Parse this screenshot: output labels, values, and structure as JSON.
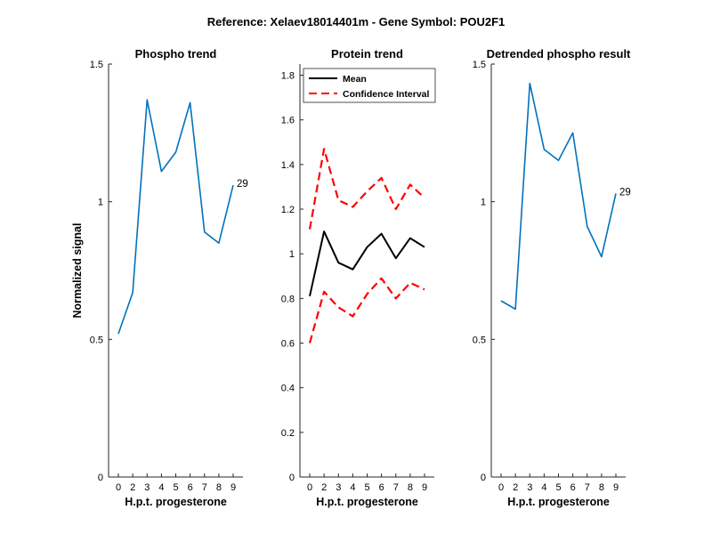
{
  "figure": {
    "title": "Reference:  Xelaev18014401m - Gene Symbol:  POU2F1"
  },
  "chart_data": [
    {
      "type": "line",
      "title": "Phospho trend",
      "xlabel": "H.p.t. progesterone",
      "ylabel": "Normalized signal",
      "x": [
        0,
        2,
        3,
        4,
        5,
        6,
        7,
        8,
        9
      ],
      "xtick_labels": [
        "0",
        "2",
        "3",
        "4",
        "5",
        "6",
        "7",
        "8",
        "9"
      ],
      "ylim": [
        0,
        1.5
      ],
      "yticks": [
        0,
        0.5,
        1,
        1.5
      ],
      "ytick_labels": [
        "0",
        "0.5",
        "1",
        "1.5"
      ],
      "series": [
        {
          "values": [
            0.52,
            0.67,
            1.37,
            1.11,
            1.18,
            1.36,
            0.89,
            0.85,
            1.06
          ],
          "color": "#0072BD",
          "style": "solid"
        }
      ],
      "annotation": {
        "text": "29",
        "x": 9,
        "y": 1.06
      },
      "grid": false
    },
    {
      "type": "line",
      "title": "Protein trend",
      "xlabel": "H.p.t. progesterone",
      "ylabel": "",
      "x": [
        0,
        2,
        3,
        4,
        5,
        6,
        7,
        8,
        9
      ],
      "xtick_labels": [
        "0",
        "2",
        "3",
        "4",
        "5",
        "6",
        "7",
        "8",
        "9"
      ],
      "ylim": [
        0,
        1.85
      ],
      "yticks": [
        0,
        0.2,
        0.4,
        0.6,
        0.8,
        1,
        1.2,
        1.4,
        1.6,
        1.8
      ],
      "ytick_labels": [
        "0",
        "0.2",
        "0.4",
        "0.6",
        "0.8",
        "1",
        "1.2",
        "1.4",
        "1.6",
        "1.8"
      ],
      "series": [
        {
          "name": "Mean",
          "values": [
            0.81,
            1.1,
            0.96,
            0.93,
            1.03,
            1.09,
            0.98,
            1.07,
            1.03
          ],
          "color": "#000000",
          "style": "solid"
        },
        {
          "name": "Confidence Interval",
          "values": [
            1.11,
            1.47,
            1.24,
            1.21,
            1.28,
            1.34,
            1.2,
            1.31,
            1.25
          ],
          "color": "#ff0000",
          "style": "dashed"
        },
        {
          "values": [
            0.6,
            0.83,
            0.76,
            0.72,
            0.82,
            0.89,
            0.8,
            0.87,
            0.84
          ],
          "color": "#ff0000",
          "style": "dashed"
        }
      ],
      "legend": {
        "placement": "top-left",
        "entries": [
          "Mean",
          "Confidence Interval"
        ]
      },
      "grid": false
    },
    {
      "type": "line",
      "title": "Detrended phospho result",
      "xlabel": "H.p.t. progesterone",
      "ylabel": "",
      "x": [
        0,
        2,
        3,
        4,
        5,
        6,
        7,
        8,
        9
      ],
      "xtick_labels": [
        "0",
        "2",
        "3",
        "4",
        "5",
        "6",
        "7",
        "8",
        "9"
      ],
      "ylim": [
        0,
        1.5
      ],
      "yticks": [
        0,
        0.5,
        1,
        1.5
      ],
      "ytick_labels": [
        "0",
        "0.5",
        "1",
        "1.5"
      ],
      "series": [
        {
          "values": [
            0.64,
            0.61,
            1.43,
            1.19,
            1.15,
            1.25,
            0.91,
            0.8,
            1.03
          ],
          "color": "#0072BD",
          "style": "solid"
        }
      ],
      "annotation": {
        "text": "29",
        "x": 9,
        "y": 1.03
      },
      "grid": false
    }
  ]
}
